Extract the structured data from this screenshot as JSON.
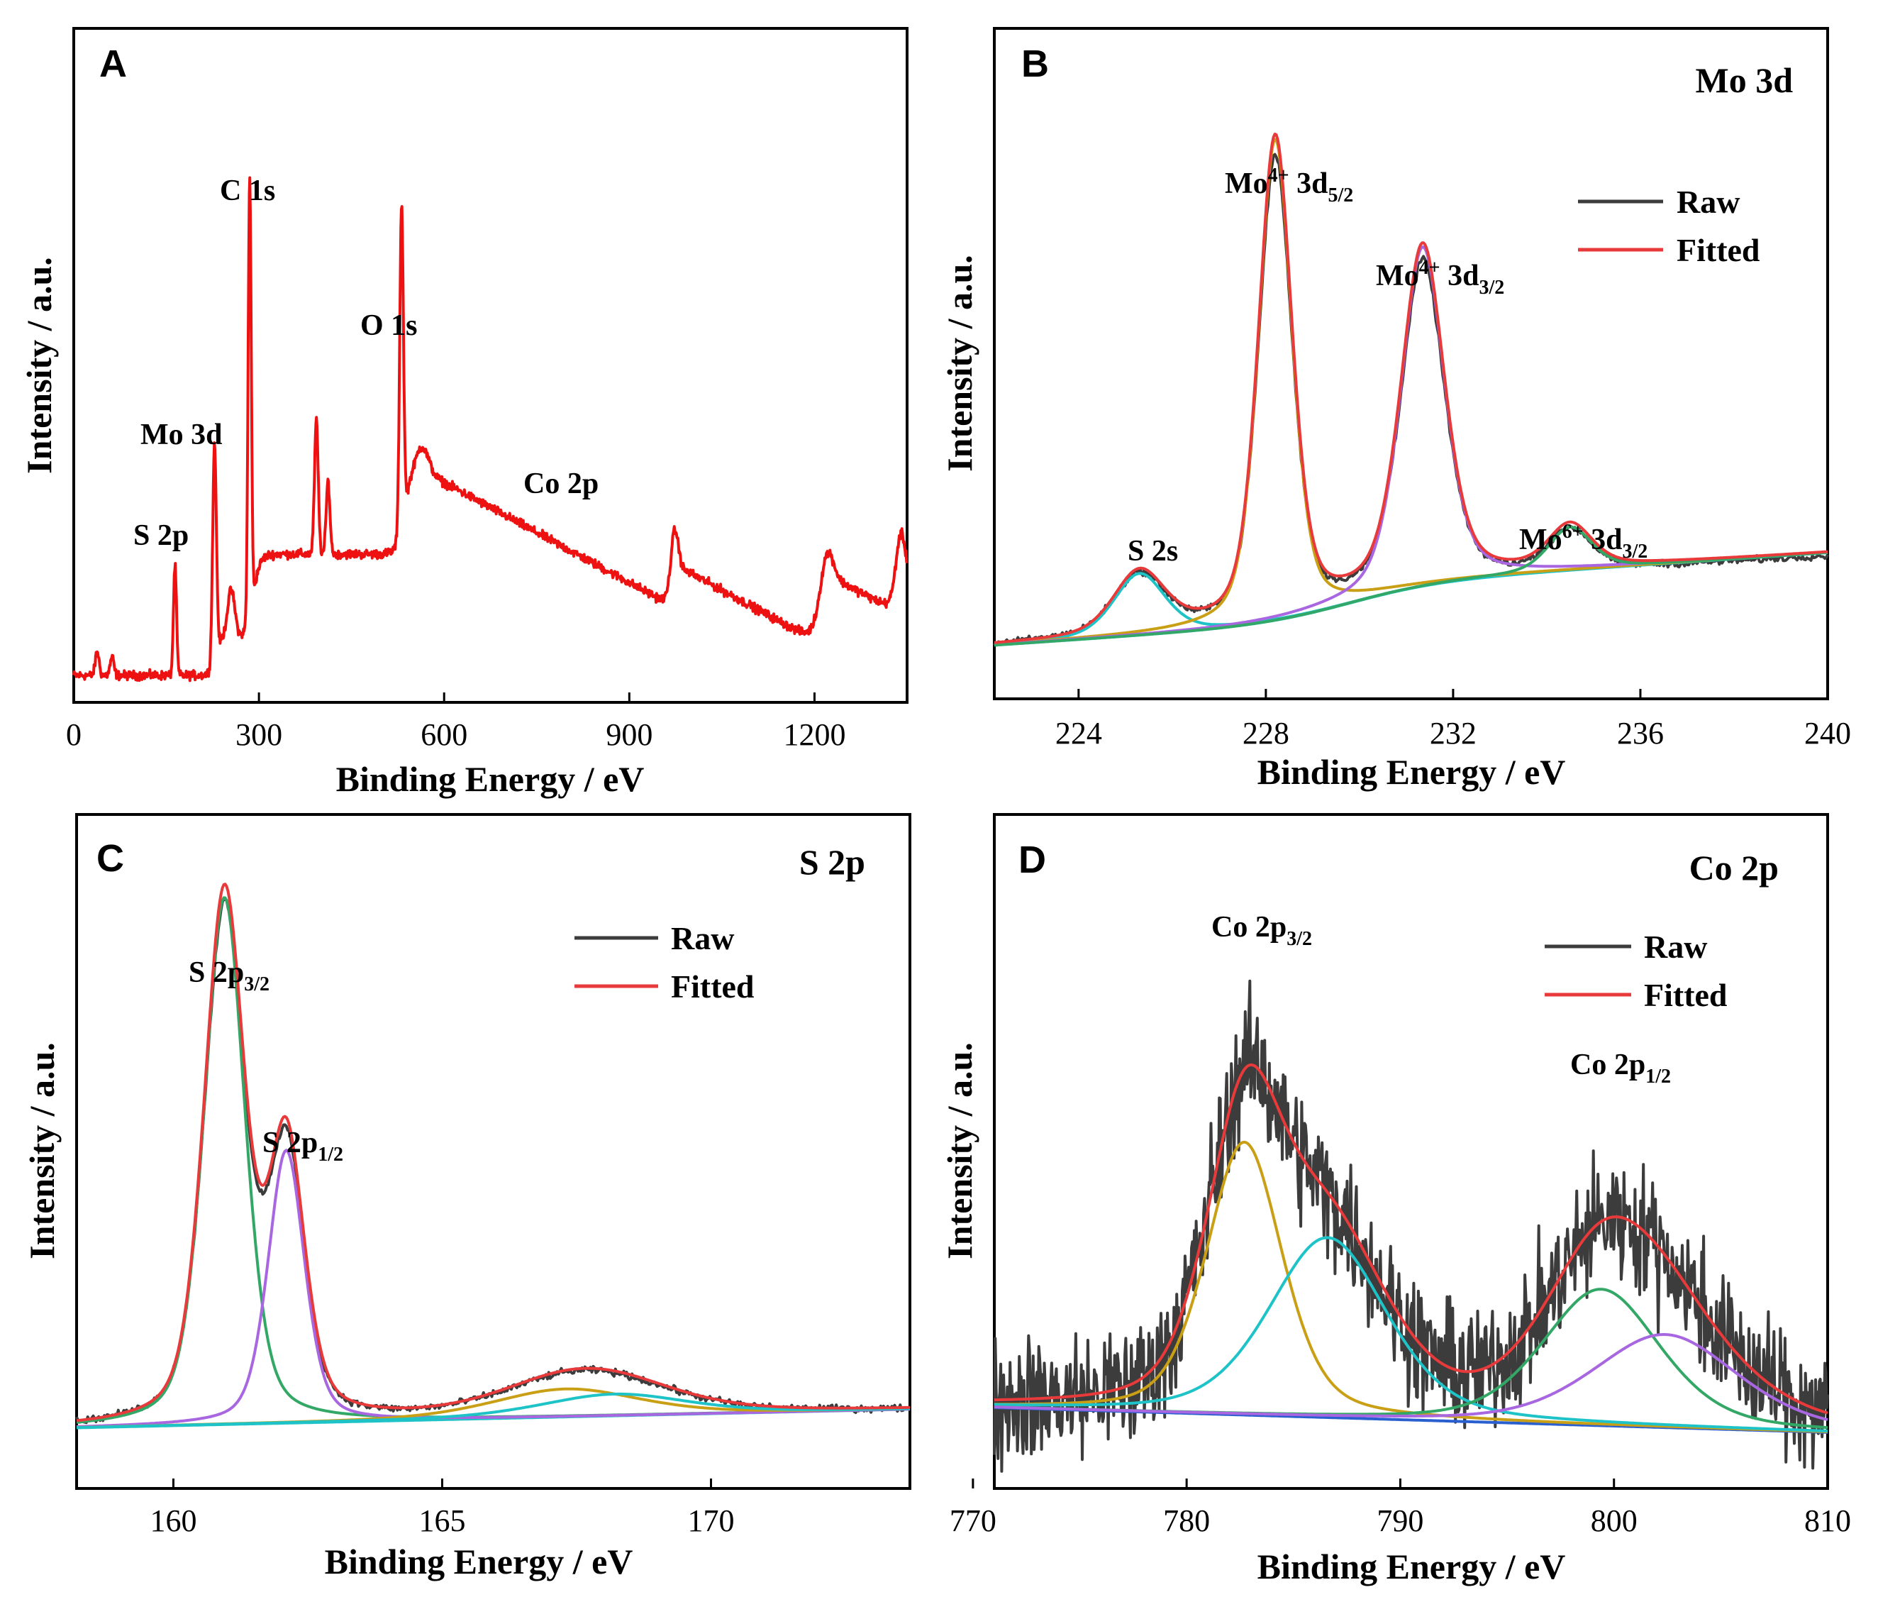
{
  "colors": {
    "raw": "#3c3c3c",
    "fitted": "#e83a3a",
    "survey": "#ee1111",
    "gold": "#c9a015",
    "cyan": "#1ec3c8",
    "purple": "#a867e0",
    "green": "#33a866",
    "blue": "#2a5fd0"
  },
  "chart_data": [
    {
      "panel": "A",
      "type": "line",
      "title": "",
      "xlabel": "Binding Energy / eV",
      "ylabel": "Intensity / a.u.",
      "xlim": [
        0,
        1350
      ],
      "xticks": [
        0,
        300,
        600,
        900,
        1200
      ],
      "annotations": [
        {
          "text": "S 2p",
          "x": 165
        },
        {
          "text": "Mo 3d",
          "x": 229
        },
        {
          "text": "C 1s",
          "x": 285
        },
        {
          "text": "O 1s",
          "x": 531
        },
        {
          "text": "Co 2p",
          "x": 781
        }
      ],
      "series": [
        {
          "name": "Survey",
          "color_key": "survey",
          "peaks": [
            [
              38,
              0.04,
              3
            ],
            [
              62,
              0.03,
              3
            ],
            [
              164,
              0.18,
              2.5
            ],
            [
              228,
              0.35,
              3
            ],
            [
              255,
              0.08,
              6
            ],
            [
              285,
              0.72,
              2.5
            ],
            [
              393,
              0.22,
              3
            ],
            [
              412,
              0.12,
              3
            ],
            [
              531,
              0.53,
              3
            ],
            [
              565,
              0.04,
              10
            ],
            [
              973,
              0.08,
              6
            ],
            [
              1220,
              0.06,
              10
            ],
            [
              1340,
              0.1,
              8
            ]
          ],
          "steps": [
            [
              228,
              0.06,
              4
            ],
            [
              290,
              0.14,
              6
            ],
            [
              535,
              0.14,
              6
            ],
            [
              970,
              0.07,
              5
            ],
            [
              1210,
              0.12,
              8
            ],
            [
              1335,
              0.05,
              8
            ]
          ],
          "base_slope": -0.00055,
          "noise": 0.008
        }
      ]
    },
    {
      "panel": "B",
      "type": "line",
      "title": "Mo 3d",
      "xlabel": "Binding Energy / eV",
      "ylabel": "Intensity / a.u.",
      "xlim": [
        222.2,
        240
      ],
      "xticks": [
        224,
        228,
        232,
        236,
        240
      ],
      "legend": [
        "Raw",
        "Fitted"
      ],
      "legend_position": "top-right",
      "annotations": [
        {
          "main": "S 2s",
          "sup": "",
          "sub": ""
        },
        {
          "main": "Mo",
          "sup": "4+",
          "mid": " 3d",
          "sub": "5/2"
        },
        {
          "main": "Mo",
          "sup": "4+",
          "mid": " 3d",
          "sub": "3/2"
        },
        {
          "main": "Mo",
          "sup": "6+",
          "mid": " 3d",
          "sub": "3/2"
        }
      ],
      "background": {
        "start": 0.0,
        "end": 0.09,
        "shift": 0.06,
        "center": 229.8,
        "width": 1.0
      },
      "components": [
        {
          "name": "S 2s",
          "color_key": "cyan",
          "center": 225.3,
          "height": 0.1,
          "fwhm": 1.3
        },
        {
          "name": "Mo4+ 3d5/2",
          "color_key": "gold",
          "center": 228.2,
          "height": 0.78,
          "fwhm": 0.85
        },
        {
          "name": "Mo4+ 3d3/2",
          "color_key": "purple",
          "center": 231.35,
          "height": 0.55,
          "fwhm": 1.1
        },
        {
          "name": "Mo6+ 3d3/2",
          "color_key": "green",
          "center": 234.5,
          "height": 0.07,
          "fwhm": 1.1
        }
      ],
      "raw_noise": 0.006,
      "raw_scale": 0.96
    },
    {
      "panel": "C",
      "type": "line",
      "title": "S 2p",
      "xlabel": "Binding Energy / eV",
      "ylabel": "Intensity / a.u.",
      "xlim": [
        158.2,
        173.7
      ],
      "xticks": [
        160,
        165,
        170
      ],
      "legend": [
        "Raw",
        "Fitted"
      ],
      "legend_position": "top-right",
      "annotations": [
        {
          "main": "S 2p",
          "sup": "",
          "mid": "",
          "sub": "3/2"
        },
        {
          "main": "S 2p",
          "sup": "",
          "mid": "",
          "sub": "1/2"
        }
      ],
      "background": {
        "start": 0.0,
        "end": 0.03,
        "shift": 0.0,
        "center": 163.5,
        "width": 1.2
      },
      "components": [
        {
          "name": "S 2p3/2",
          "color_key": "green",
          "center": 160.95,
          "height": 0.85,
          "fwhm": 0.9
        },
        {
          "name": "S 2p1/2",
          "color_key": "purple",
          "center": 162.1,
          "height": 0.44,
          "fwhm": 0.8
        },
        {
          "name": "S satellite 1",
          "color_key": "gold",
          "center": 167.3,
          "height": 0.045,
          "fwhm": 3.2
        },
        {
          "name": "S satellite 2",
          "color_key": "cyan",
          "center": 168.2,
          "height": 0.035,
          "fwhm": 3.2
        }
      ],
      "raw_noise": 0.006,
      "raw_scale": 0.97
    },
    {
      "panel": "D",
      "type": "line",
      "title": "Co 2p",
      "xlabel": "Binding Energy / eV",
      "ylabel": "Intensity / a.u.",
      "xlim": [
        771,
        810
      ],
      "xticks": [
        770,
        780,
        790,
        800,
        810
      ],
      "legend": [
        "Raw",
        "Fitted"
      ],
      "legend_position": "top-right",
      "annotations": [
        {
          "main": "Co 2p",
          "sup": "",
          "mid": "",
          "sub": "3/2"
        },
        {
          "main": "Co 2p",
          "sup": "",
          "mid": "",
          "sub": "1/2"
        }
      ],
      "background": {
        "start": 0.0,
        "end": -0.04,
        "shift": 0.0,
        "center": 790,
        "width": 8
      },
      "components": [
        {
          "name": "Co 2p3/2 main",
          "color_key": "gold",
          "center": 782.7,
          "height": 0.44,
          "fwhm": 4.2
        },
        {
          "name": "Co 2p3/2 sat",
          "color_key": "cyan",
          "center": 786.6,
          "height": 0.29,
          "fwhm": 6.5
        },
        {
          "name": "Co 2p1/2 main",
          "color_key": "green",
          "center": 799.4,
          "height": 0.22,
          "fwhm": 6.5
        },
        {
          "name": "Co 2p1/2 sat",
          "color_key": "purple",
          "center": 802.4,
          "height": 0.15,
          "fwhm": 8.0
        }
      ],
      "baseline_line": {
        "color_key": "blue"
      },
      "raw_noise": 0.09,
      "raw_scale": 1.0
    }
  ]
}
